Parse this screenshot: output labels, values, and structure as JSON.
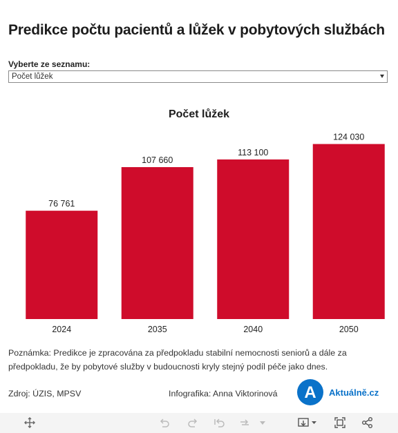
{
  "header": {
    "title": "Predikce počtu pacientů a lůžek v pobytových službách"
  },
  "selector": {
    "label": "Vyberte ze seznamu:",
    "value": "Počet lůžek"
  },
  "chart_data": {
    "type": "bar",
    "title": "Počet lůžek",
    "categories": [
      "2024",
      "2035",
      "2040",
      "2050"
    ],
    "values": [
      76761,
      107660,
      113100,
      124030
    ],
    "value_labels": [
      "76 761",
      "107 660",
      "113 100",
      "124 030"
    ],
    "ylim": [
      0,
      138000
    ],
    "xlabel": "",
    "ylabel": "",
    "grid": false,
    "bar_color": "#cf0c2b"
  },
  "footer": {
    "note": "Poznámka: Predikce je zpracována za předpokladu stabilní nemocnosti seniorů a dále za předpokladu, že by pobytové služby v budoucnosti kryly stejný podíl péče jako dnes.",
    "source": "Zdroj: ÚZIS, MPSV",
    "credit": "Infografika: Anna Viktorinová",
    "logo_letter": "A",
    "logo_text": "Aktuálně.cz",
    "brand_color": "#0a72c9"
  },
  "toolbar": {
    "icons": [
      "move-icon",
      "undo-icon",
      "redo-icon",
      "revert-icon",
      "refresh-icon",
      "dropdown-icon",
      "download-icon",
      "fullscreen-icon",
      "share-icon"
    ]
  }
}
